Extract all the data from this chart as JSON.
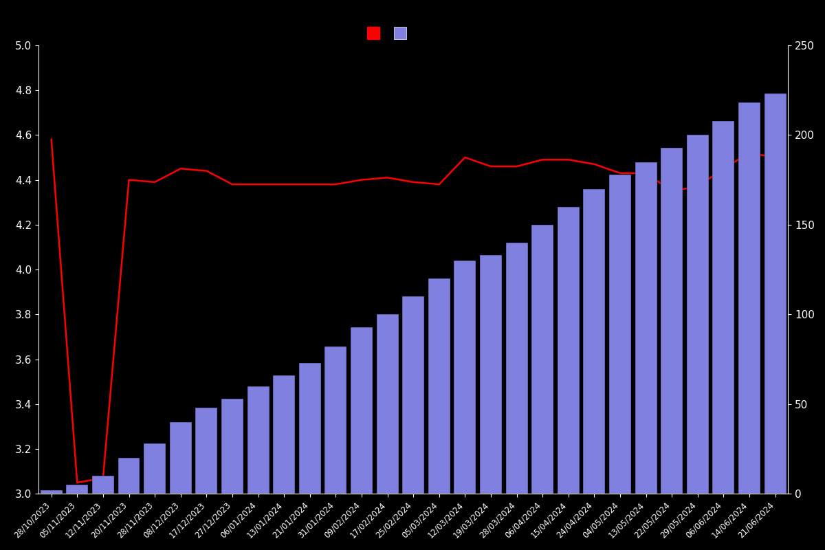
{
  "dates": [
    "28/10/2023",
    "05/11/2023",
    "12/11/2023",
    "20/11/2023",
    "28/11/2023",
    "08/12/2023",
    "17/12/2023",
    "27/12/2023",
    "06/01/2024",
    "13/01/2024",
    "21/01/2024",
    "31/01/2024",
    "09/02/2024",
    "17/02/2024",
    "25/02/2024",
    "05/03/2024",
    "12/03/2024",
    "19/03/2024",
    "28/03/2024",
    "06/04/2024",
    "15/04/2024",
    "24/04/2024",
    "04/05/2024",
    "13/05/2024",
    "22/05/2024",
    "29/05/2024",
    "06/06/2024",
    "14/06/2024",
    "21/06/2024"
  ],
  "bar_values": [
    2,
    5,
    10,
    20,
    28,
    40,
    48,
    53,
    60,
    66,
    73,
    82,
    93,
    100,
    110,
    120,
    130,
    133,
    140,
    150,
    160,
    170,
    178,
    185,
    193,
    200,
    208,
    218,
    223
  ],
  "rating_values": [
    4.58,
    3.05,
    3.07,
    4.4,
    4.39,
    4.45,
    4.44,
    4.38,
    4.38,
    4.38,
    4.38,
    4.38,
    4.4,
    4.41,
    4.39,
    4.38,
    4.5,
    4.46,
    4.46,
    4.49,
    4.49,
    4.47,
    4.43,
    4.43,
    4.35,
    4.37,
    4.45,
    4.52,
    4.5
  ],
  "bar_color": "#8080e0",
  "bar_edge_color": "#000000",
  "line_color": "#ff0000",
  "background_color": "#000000",
  "text_color": "#ffffff",
  "ylim_left": [
    3.0,
    5.0
  ],
  "ylim_right": [
    0,
    250
  ],
  "yticks_left": [
    3.0,
    3.2,
    3.4,
    3.6,
    3.8,
    4.0,
    4.2,
    4.4,
    4.6,
    4.8,
    5.0
  ],
  "yticks_right": [
    0,
    50,
    100,
    150,
    200,
    250
  ]
}
